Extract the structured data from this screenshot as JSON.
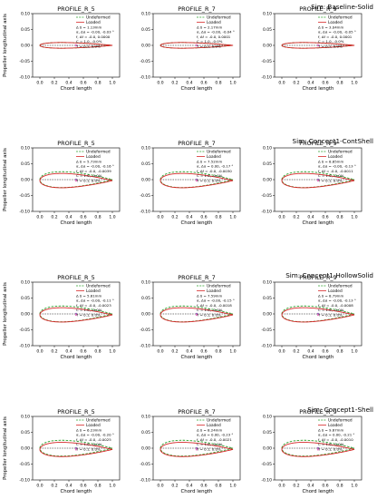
{
  "chart_data": {
    "type": "line",
    "xlabel": "Chord length",
    "ylabel": "Propeller longitudinal axis",
    "xlim": [
      -0.1,
      1.1
    ],
    "ylim": [
      -0.1,
      0.1
    ],
    "xticks": [
      "0.0",
      "0.2",
      "0.4",
      "0.6",
      "0.8",
      "1.0"
    ],
    "yticks": [
      "0.10",
      "0.05",
      "0.00",
      "-0.05",
      "-0.10"
    ],
    "legend": {
      "undeformed": "Undeformed",
      "loaded": "Loaded",
      "position": "top-right"
    },
    "colors": {
      "undeformed": "#2ca02c",
      "loaded": "#d62728",
      "centroid_undeformed": "#9467bd",
      "centroid_loaded": "#e377c2",
      "chordline": "#000000"
    },
    "rows": [
      {
        "sim_label": "Sim: Baseline-Solid",
        "panels": [
          {
            "title": "PROFILE_R_5",
            "thickness": 0.018,
            "loaded_scale": 1.0,
            "dy": 0.0,
            "stats": [
              "Δ δ  =   1.13mm",
              "α, Δα = -0.00, -0.03 °",
              "f, Δf  = -0.0, 0.0000",
              "C       = 1.0, -0.0%",
              "T       = 0.1,  0.0%"
            ]
          },
          {
            "title": "PROFILE_R_7",
            "thickness": 0.018,
            "loaded_scale": 1.0,
            "dy": 0.0,
            "stats": [
              "Δ δ  =   2.17mm",
              "α, Δα = -0.00, -0.04 °",
              "f, Δf  = -0.0, 0.0001",
              "C       = 1.0, -0.0%",
              "T       = 0.1,  0.0%"
            ]
          },
          {
            "title": "PROFILE_R_9",
            "thickness": 0.018,
            "loaded_scale": 1.0,
            "dy": 0.0,
            "stats": [
              "Δ δ  =   3.04mm",
              "α, Δα = -0.00, -0.05 °",
              "f, Δf  = -0.0, 0.0001",
              "C       = 1.0, -0.0%",
              "T       = 0.1,  0.0%"
            ]
          }
        ]
      },
      {
        "sim_label": "Sim: Concept1-ContShell",
        "panels": [
          {
            "title": "PROFILE_R_5",
            "thickness": 0.05,
            "loaded_scale": 0.9,
            "dy": -0.003,
            "stats": [
              "Δ δ  =   5.73mm",
              "α, Δα = -0.00, -0.16 °",
              "f, Δf  = -0.0, -0.0039",
              "C       = 1.0, -0.0%",
              "T       = 0.1,  0.0%"
            ]
          },
          {
            "title": "PROFILE_R_7",
            "thickness": 0.05,
            "loaded_scale": 0.9,
            "dy": -0.003,
            "stats": [
              "Δ δ  =   7.52mm",
              "α, Δα = 0.00, -0.17 °",
              "f, Δf  = -0.0, -0.0030",
              "C       = 1.0, -0.0%",
              "T       = 0.1,  0.0%"
            ]
          },
          {
            "title": "PROFILE_R_9",
            "thickness": 0.05,
            "loaded_scale": 0.9,
            "dy": -0.003,
            "stats": [
              "Δ δ  =   8.85mm",
              "α, Δα = -0.00, -0.13 °",
              "f, Δf  = -0.0, -0.0011",
              "C       = 1.0, -0.0%",
              "T       = 0.1,  0.0%"
            ]
          }
        ]
      },
      {
        "sim_label": "Sim: Concept1-HollowSolid",
        "panels": [
          {
            "title": "PROFILE_R_5",
            "thickness": 0.05,
            "loaded_scale": 0.9,
            "dy": -0.003,
            "stats": [
              "Δ δ  =   5.81mm",
              "α, Δα = -0.00, -0.11 °",
              "f, Δf  = -0.0, -0.0023",
              "C       = 1.0, -0.0%",
              "T       = 0.1,  0.0%"
            ]
          },
          {
            "title": "PROFILE_R_7",
            "thickness": 0.05,
            "loaded_scale": 0.9,
            "dy": -0.003,
            "stats": [
              "Δ δ  =   7.59mm",
              "α, Δα = -0.00, -0.15 °",
              "f, Δf  = -0.0, -0.0018",
              "C       = 1.0, -0.0%",
              "T       = 0.1,  0.0%"
            ]
          },
          {
            "title": "PROFILE_R_9",
            "thickness": 0.05,
            "loaded_scale": 0.9,
            "dy": -0.003,
            "stats": [
              "Δ δ  =   8.79mm",
              "α, Δα = -0.00, -0.13 °",
              "f, Δf  = -0.0, -0.0008",
              "C       = 1.0, -0.0%",
              "T       = 0.1,  0.0%"
            ]
          }
        ]
      },
      {
        "sim_label": "Sim: Concept1-Shell",
        "panels": [
          {
            "title": "PROFILE_R_5",
            "thickness": 0.05,
            "loaded_scale": 0.9,
            "dy": -0.004,
            "stats": [
              "Δ δ  =   6.23mm",
              "α, Δα = -0.00, -0.20 °",
              "f, Δf  = -0.0, -0.0025",
              "C       = 1.0, -0.0%",
              "T       = 0.1,  0.0%"
            ]
          },
          {
            "title": "PROFILE_R_7",
            "thickness": 0.05,
            "loaded_scale": 0.9,
            "dy": -0.004,
            "stats": [
              "Δ δ  =   8.24mm",
              "α, Δα = 0.00, -0.23 °",
              "f, Δf  = -0.0, -0.0021",
              "C       = 1.0, -0.0%",
              "T       = 0.1,  0.0%"
            ]
          },
          {
            "title": "PROFILE_R_9",
            "thickness": 0.05,
            "loaded_scale": 0.9,
            "dy": -0.004,
            "stats": [
              "Δ δ  =   9.67mm",
              "α, Δα = 0.00, -0.21 °",
              "f, Δf  = -0.0, -0.0010",
              "C       = 1.0, -0.0%",
              "T       = 0.1,  0.0%"
            ]
          }
        ]
      }
    ]
  }
}
